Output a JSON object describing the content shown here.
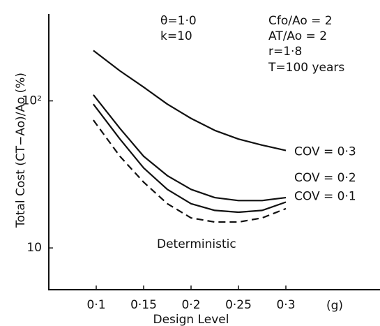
{
  "chart_data": {
    "type": "line",
    "xlabel": "Design Level",
    "ylabel": "Total Cost (CT−Ao)/Ao (%)",
    "x_unit": "(g)",
    "annotations": [
      "θ=1·0",
      "k=10",
      "Cfo/Ao = 2",
      "AT/Ao = 2",
      "r=1·8",
      "T=100 years",
      "Deterministic"
    ],
    "x": [
      0.097,
      0.125,
      0.15,
      0.175,
      0.2,
      0.225,
      0.25,
      0.275,
      0.3
    ],
    "series": [
      {
        "name": "COV = 0·3",
        "color": "#111111",
        "dashed": false,
        "values": [
          220,
          160,
          124,
          95,
          76,
          63,
          55,
          50,
          46
        ]
      },
      {
        "name": "COV = 0·2",
        "color": "#111111",
        "dashed": false,
        "values": [
          110,
          65,
          42,
          31,
          25,
          22,
          21,
          21,
          22
        ]
      },
      {
        "name": "COV = 0·1",
        "color": "#111111",
        "dashed": false,
        "values": [
          95,
          55,
          35,
          25,
          20,
          18,
          17.5,
          18,
          20.5
        ]
      },
      {
        "name": null,
        "color": "#111111",
        "dashed": true,
        "values": [
          74,
          42,
          28,
          20,
          16,
          15,
          15,
          16,
          18.5
        ]
      }
    ],
    "xlim": [
      0.05,
      0.4
    ],
    "ylim": [
      5.2,
      390
    ],
    "log_y": true,
    "xticks": [
      {
        "value": 0.1,
        "label": "0·1"
      },
      {
        "value": 0.15,
        "label": "0·15"
      },
      {
        "value": 0.2,
        "label": "0·2"
      },
      {
        "value": 0.25,
        "label": "0·25"
      },
      {
        "value": 0.3,
        "label": "0·3"
      }
    ],
    "yticks": [
      10,
      {
        "value": 100,
        "label": "10²"
      }
    ]
  }
}
